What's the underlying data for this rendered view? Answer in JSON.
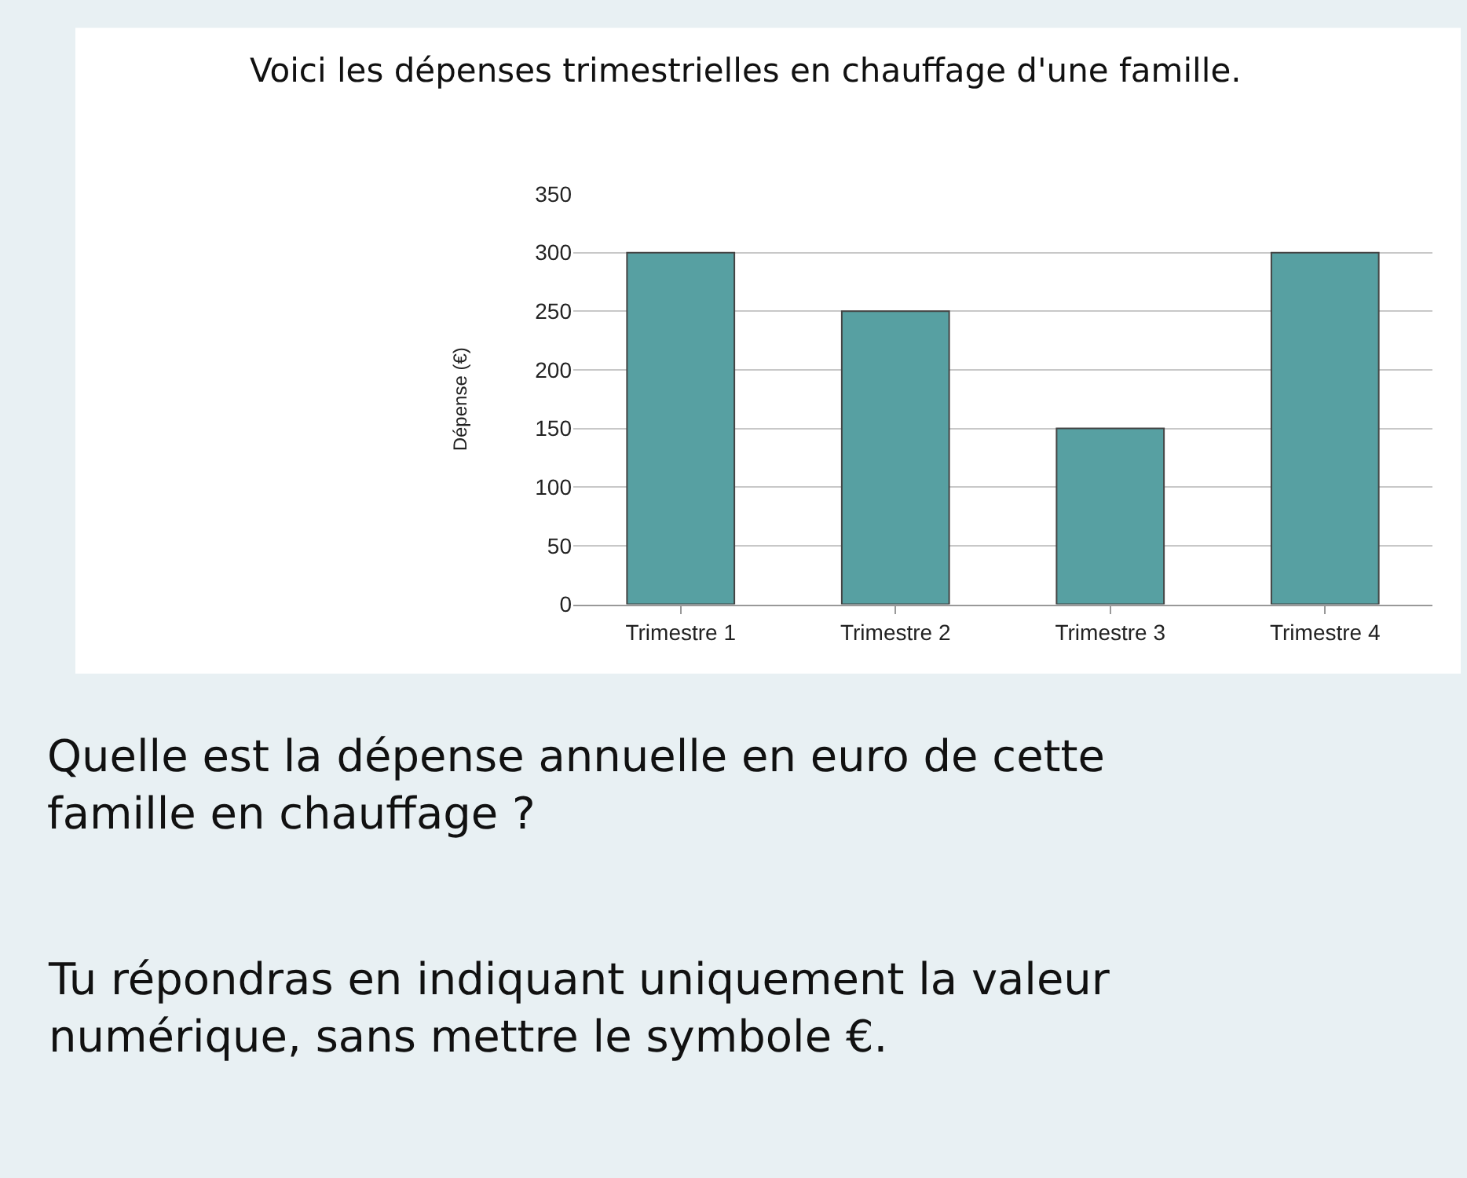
{
  "chart_data": {
    "type": "bar",
    "title": "Voici les dépenses trimestrielles en chauffage d'une famille.",
    "ylabel": "Dépense (€)",
    "categories": [
      "Trimestre 1",
      "Trimestre 2",
      "Trimestre 3",
      "Trimestre 4"
    ],
    "values": [
      300,
      250,
      150,
      300
    ],
    "color": "#57a0a2",
    "ylim": [
      0,
      350
    ],
    "yticks": [
      0,
      50,
      100,
      150,
      200,
      250,
      300,
      350
    ],
    "grid": "y",
    "legend": false,
    "annotations": [
      "Quelle est la dépense annuelle en euro de cette famille en chauffage ?",
      "Tu répondras en indiquant uniquement la valeur numérique, sans mettre le symbole €."
    ]
  }
}
